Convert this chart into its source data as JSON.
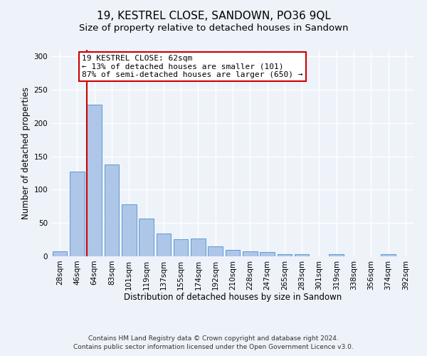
{
  "title": "19, KESTREL CLOSE, SANDOWN, PO36 9QL",
  "subtitle": "Size of property relative to detached houses in Sandown",
  "xlabel": "Distribution of detached houses by size in Sandown",
  "ylabel": "Number of detached properties",
  "categories": [
    "28sqm",
    "46sqm",
    "64sqm",
    "83sqm",
    "101sqm",
    "119sqm",
    "137sqm",
    "155sqm",
    "174sqm",
    "192sqm",
    "210sqm",
    "228sqm",
    "247sqm",
    "265sqm",
    "283sqm",
    "301sqm",
    "319sqm",
    "338sqm",
    "356sqm",
    "374sqm",
    "392sqm"
  ],
  "values": [
    8,
    127,
    228,
    138,
    78,
    57,
    34,
    26,
    27,
    15,
    10,
    8,
    6,
    3,
    3,
    0,
    3,
    0,
    0,
    3,
    0
  ],
  "bar_color": "#aec6e8",
  "bar_edge_color": "#5b9bd5",
  "property_line_index": 2,
  "property_line_color": "#cc0000",
  "annotation_text": "19 KESTREL CLOSE: 62sqm\n← 13% of detached houses are smaller (101)\n87% of semi-detached houses are larger (650) →",
  "annotation_box_color": "#ffffff",
  "annotation_box_edge": "#cc0000",
  "ylim": [
    0,
    310
  ],
  "yticks": [
    0,
    50,
    100,
    150,
    200,
    250,
    300
  ],
  "footer": "Contains HM Land Registry data © Crown copyright and database right 2024.\nContains public sector information licensed under the Open Government Licence v3.0.",
  "bg_color": "#eef2f9",
  "grid_color": "#ffffff",
  "title_fontsize": 11,
  "subtitle_fontsize": 9.5,
  "axis_label_fontsize": 8.5,
  "tick_fontsize": 7.5,
  "annotation_fontsize": 8,
  "footer_fontsize": 6.5
}
